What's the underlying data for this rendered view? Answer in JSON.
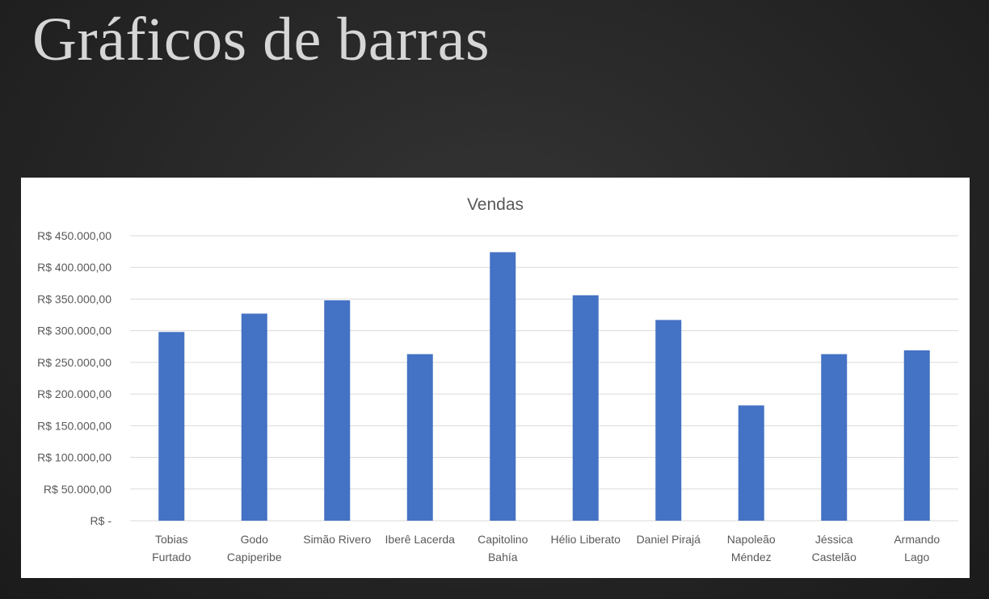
{
  "slide": {
    "title": "Gráficos de barras"
  },
  "chart_data": {
    "type": "bar",
    "title": "Vendas",
    "xlabel": "",
    "ylabel": "",
    "categories": [
      [
        "Tobias",
        "Furtado"
      ],
      [
        "Godo",
        "Capiperibe"
      ],
      [
        "Simão Rivero"
      ],
      [
        "Iberê Lacerda"
      ],
      [
        "Capitolino",
        "Bahía"
      ],
      [
        "Hélio Liberato"
      ],
      [
        "Daniel Pirajá"
      ],
      [
        "Napoleão",
        "Méndez"
      ],
      [
        "Jéssica",
        "Castelão"
      ],
      [
        "Armando",
        "Lago"
      ]
    ],
    "values": [
      298000,
      327000,
      348000,
      263000,
      424000,
      356000,
      317000,
      182000,
      263000,
      269000
    ],
    "ylim": [
      0,
      450000
    ],
    "y_ticks": [
      0,
      50000,
      100000,
      150000,
      200000,
      250000,
      300000,
      350000,
      400000,
      450000
    ],
    "y_tick_labels": [
      "R$ -",
      "R$ 50.000,00",
      "R$ 100.000,00",
      "R$ 150.000,00",
      "R$ 200.000,00",
      "R$ 250.000,00",
      "R$ 300.000,00",
      "R$ 350.000,00",
      "R$ 400.000,00",
      "R$ 450.000,00"
    ],
    "grid": true,
    "legend": "none",
    "bar_color": "#4472c4",
    "grid_color": "#d9d9d9"
  }
}
